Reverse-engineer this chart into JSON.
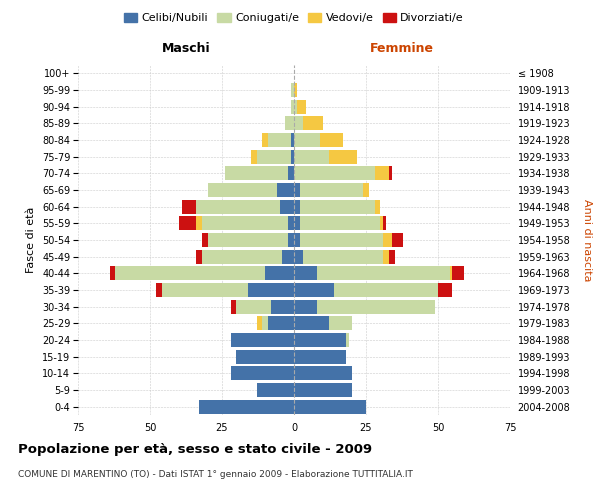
{
  "age_groups": [
    "0-4",
    "5-9",
    "10-14",
    "15-19",
    "20-24",
    "25-29",
    "30-34",
    "35-39",
    "40-44",
    "45-49",
    "50-54",
    "55-59",
    "60-64",
    "65-69",
    "70-74",
    "75-79",
    "80-84",
    "85-89",
    "90-94",
    "95-99",
    "100+"
  ],
  "birth_years": [
    "2004-2008",
    "1999-2003",
    "1994-1998",
    "1989-1993",
    "1984-1988",
    "1979-1983",
    "1974-1978",
    "1969-1973",
    "1964-1968",
    "1959-1963",
    "1954-1958",
    "1949-1953",
    "1944-1948",
    "1939-1943",
    "1934-1938",
    "1929-1933",
    "1924-1928",
    "1919-1923",
    "1914-1918",
    "1909-1913",
    "≤ 1908"
  ],
  "male": {
    "celibi": [
      33,
      13,
      22,
      20,
      22,
      9,
      8,
      16,
      10,
      4,
      2,
      2,
      5,
      6,
      2,
      1,
      1,
      0,
      0,
      0,
      0
    ],
    "coniugati": [
      0,
      0,
      0,
      0,
      0,
      2,
      12,
      30,
      52,
      28,
      28,
      30,
      29,
      24,
      22,
      12,
      8,
      3,
      1,
      1,
      0
    ],
    "vedovi": [
      0,
      0,
      0,
      0,
      0,
      2,
      0,
      0,
      0,
      0,
      0,
      2,
      0,
      0,
      0,
      2,
      2,
      0,
      0,
      0,
      0
    ],
    "divorziati": [
      0,
      0,
      0,
      0,
      0,
      0,
      2,
      2,
      2,
      2,
      2,
      6,
      5,
      0,
      0,
      0,
      0,
      0,
      0,
      0,
      0
    ]
  },
  "female": {
    "nubili": [
      25,
      20,
      20,
      18,
      18,
      12,
      8,
      14,
      8,
      3,
      2,
      2,
      2,
      2,
      0,
      0,
      0,
      0,
      0,
      0,
      0
    ],
    "coniugate": [
      0,
      0,
      0,
      0,
      1,
      8,
      41,
      36,
      46,
      28,
      29,
      28,
      26,
      22,
      28,
      12,
      9,
      3,
      1,
      0,
      0
    ],
    "vedove": [
      0,
      0,
      0,
      0,
      0,
      0,
      0,
      0,
      1,
      2,
      3,
      1,
      2,
      2,
      5,
      10,
      8,
      7,
      3,
      1,
      0
    ],
    "divorziate": [
      0,
      0,
      0,
      0,
      0,
      0,
      0,
      5,
      4,
      2,
      4,
      1,
      0,
      0,
      1,
      0,
      0,
      0,
      0,
      0,
      0
    ]
  },
  "colors": {
    "celibi": "#4472a8",
    "coniugati": "#c8daa4",
    "vedovi": "#f5c842",
    "divorziati": "#cc1111"
  },
  "xlim": 75,
  "title": "Popolazione per età, sesso e stato civile - 2009",
  "subtitle": "COMUNE DI MARENTINO (TO) - Dati ISTAT 1° gennaio 2009 - Elaborazione TUTTITALIA.IT",
  "ylabel_left": "Fasce di età",
  "ylabel_right": "Anni di nascita",
  "xlabel_left": "Maschi",
  "xlabel_right": "Femmine"
}
